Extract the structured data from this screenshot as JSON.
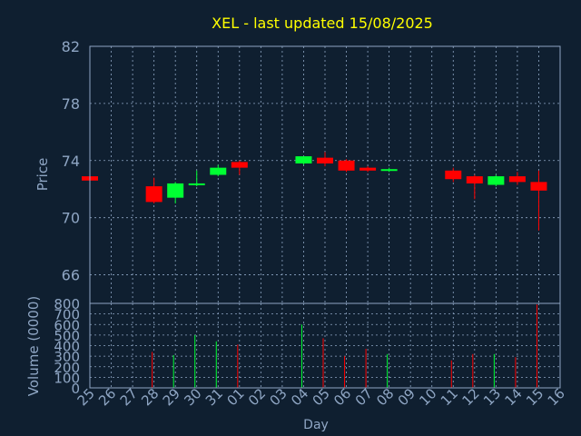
{
  "colors": {
    "background": "#0f1f30",
    "frame": "#8fa6c4",
    "grid": "#8fa6c4",
    "title": "#ffff00",
    "up": "#00ff33",
    "down": "#ff0000"
  },
  "chart_data": [
    {
      "type": "candlestick",
      "title": "XEL - last updated 15/08/2025",
      "ylabel": "Price",
      "ylim": [
        64,
        82
      ],
      "yticks": [
        66,
        70,
        74,
        78,
        82
      ],
      "grid": true,
      "categories": [
        "25",
        "26",
        "27",
        "28",
        "29",
        "30",
        "31",
        "01",
        "02",
        "03",
        "04",
        "05",
        "06",
        "07",
        "08",
        "09",
        "10",
        "11",
        "12",
        "13",
        "14",
        "15",
        "16"
      ],
      "candles": [
        {
          "x": "25",
          "open": 72.9,
          "high": 73.0,
          "low": 72.6,
          "close": 72.6
        },
        {
          "x": "28",
          "open": 72.2,
          "high": 72.8,
          "low": 71.0,
          "close": 71.1
        },
        {
          "x": "29",
          "open": 71.4,
          "high": 72.5,
          "low": 71.0,
          "close": 72.4
        },
        {
          "x": "30",
          "open": 72.3,
          "high": 73.3,
          "low": 72.2,
          "close": 72.4
        },
        {
          "x": "31",
          "open": 73.0,
          "high": 73.7,
          "low": 72.9,
          "close": 73.5
        },
        {
          "x": "01",
          "open": 73.9,
          "high": 74.0,
          "low": 73.0,
          "close": 73.5
        },
        {
          "x": "04",
          "open": 73.8,
          "high": 74.3,
          "low": 73.7,
          "close": 74.3
        },
        {
          "x": "05",
          "open": 74.2,
          "high": 74.6,
          "low": 73.6,
          "close": 73.8
        },
        {
          "x": "06",
          "open": 74.0,
          "high": 74.1,
          "low": 73.2,
          "close": 73.3
        },
        {
          "x": "07",
          "open": 73.5,
          "high": 73.6,
          "low": 73.2,
          "close": 73.3
        },
        {
          "x": "08",
          "open": 73.3,
          "high": 73.5,
          "low": 73.2,
          "close": 73.4
        },
        {
          "x": "11",
          "open": 73.3,
          "high": 73.5,
          "low": 72.5,
          "close": 72.7
        },
        {
          "x": "12",
          "open": 72.9,
          "high": 73.0,
          "low": 71.3,
          "close": 72.4
        },
        {
          "x": "13",
          "open": 72.3,
          "high": 73.0,
          "low": 72.2,
          "close": 72.9
        },
        {
          "x": "14",
          "open": 72.9,
          "high": 73.2,
          "low": 72.3,
          "close": 72.5
        },
        {
          "x": "15",
          "open": 72.5,
          "high": 73.3,
          "low": 69.1,
          "close": 71.9
        }
      ]
    },
    {
      "type": "bar",
      "ylabel": "Volume (0000)",
      "xlabel": "Day",
      "ylim": [
        0,
        800
      ],
      "yticks": [
        0,
        100,
        200,
        300,
        400,
        500,
        600,
        700,
        800
      ],
      "grid": true,
      "categories": [
        "25",
        "26",
        "27",
        "28",
        "29",
        "30",
        "31",
        "01",
        "02",
        "03",
        "04",
        "05",
        "06",
        "07",
        "08",
        "09",
        "10",
        "11",
        "12",
        "13",
        "14",
        "15",
        "16"
      ],
      "bars": [
        {
          "x": "25",
          "value": 0,
          "dir": "down"
        },
        {
          "x": "28",
          "value": 340,
          "dir": "down"
        },
        {
          "x": "29",
          "value": 310,
          "dir": "up"
        },
        {
          "x": "30",
          "value": 500,
          "dir": "up"
        },
        {
          "x": "31",
          "value": 440,
          "dir": "up"
        },
        {
          "x": "01",
          "value": 410,
          "dir": "down"
        },
        {
          "x": "04",
          "value": 600,
          "dir": "up"
        },
        {
          "x": "05",
          "value": 470,
          "dir": "down"
        },
        {
          "x": "06",
          "value": 300,
          "dir": "down"
        },
        {
          "x": "07",
          "value": 370,
          "dir": "down"
        },
        {
          "x": "08",
          "value": 320,
          "dir": "up"
        },
        {
          "x": "11",
          "value": 260,
          "dir": "down"
        },
        {
          "x": "12",
          "value": 320,
          "dir": "down"
        },
        {
          "x": "13",
          "value": 320,
          "dir": "up"
        },
        {
          "x": "14",
          "value": 290,
          "dir": "down"
        },
        {
          "x": "15",
          "value": 790,
          "dir": "down"
        }
      ]
    }
  ]
}
